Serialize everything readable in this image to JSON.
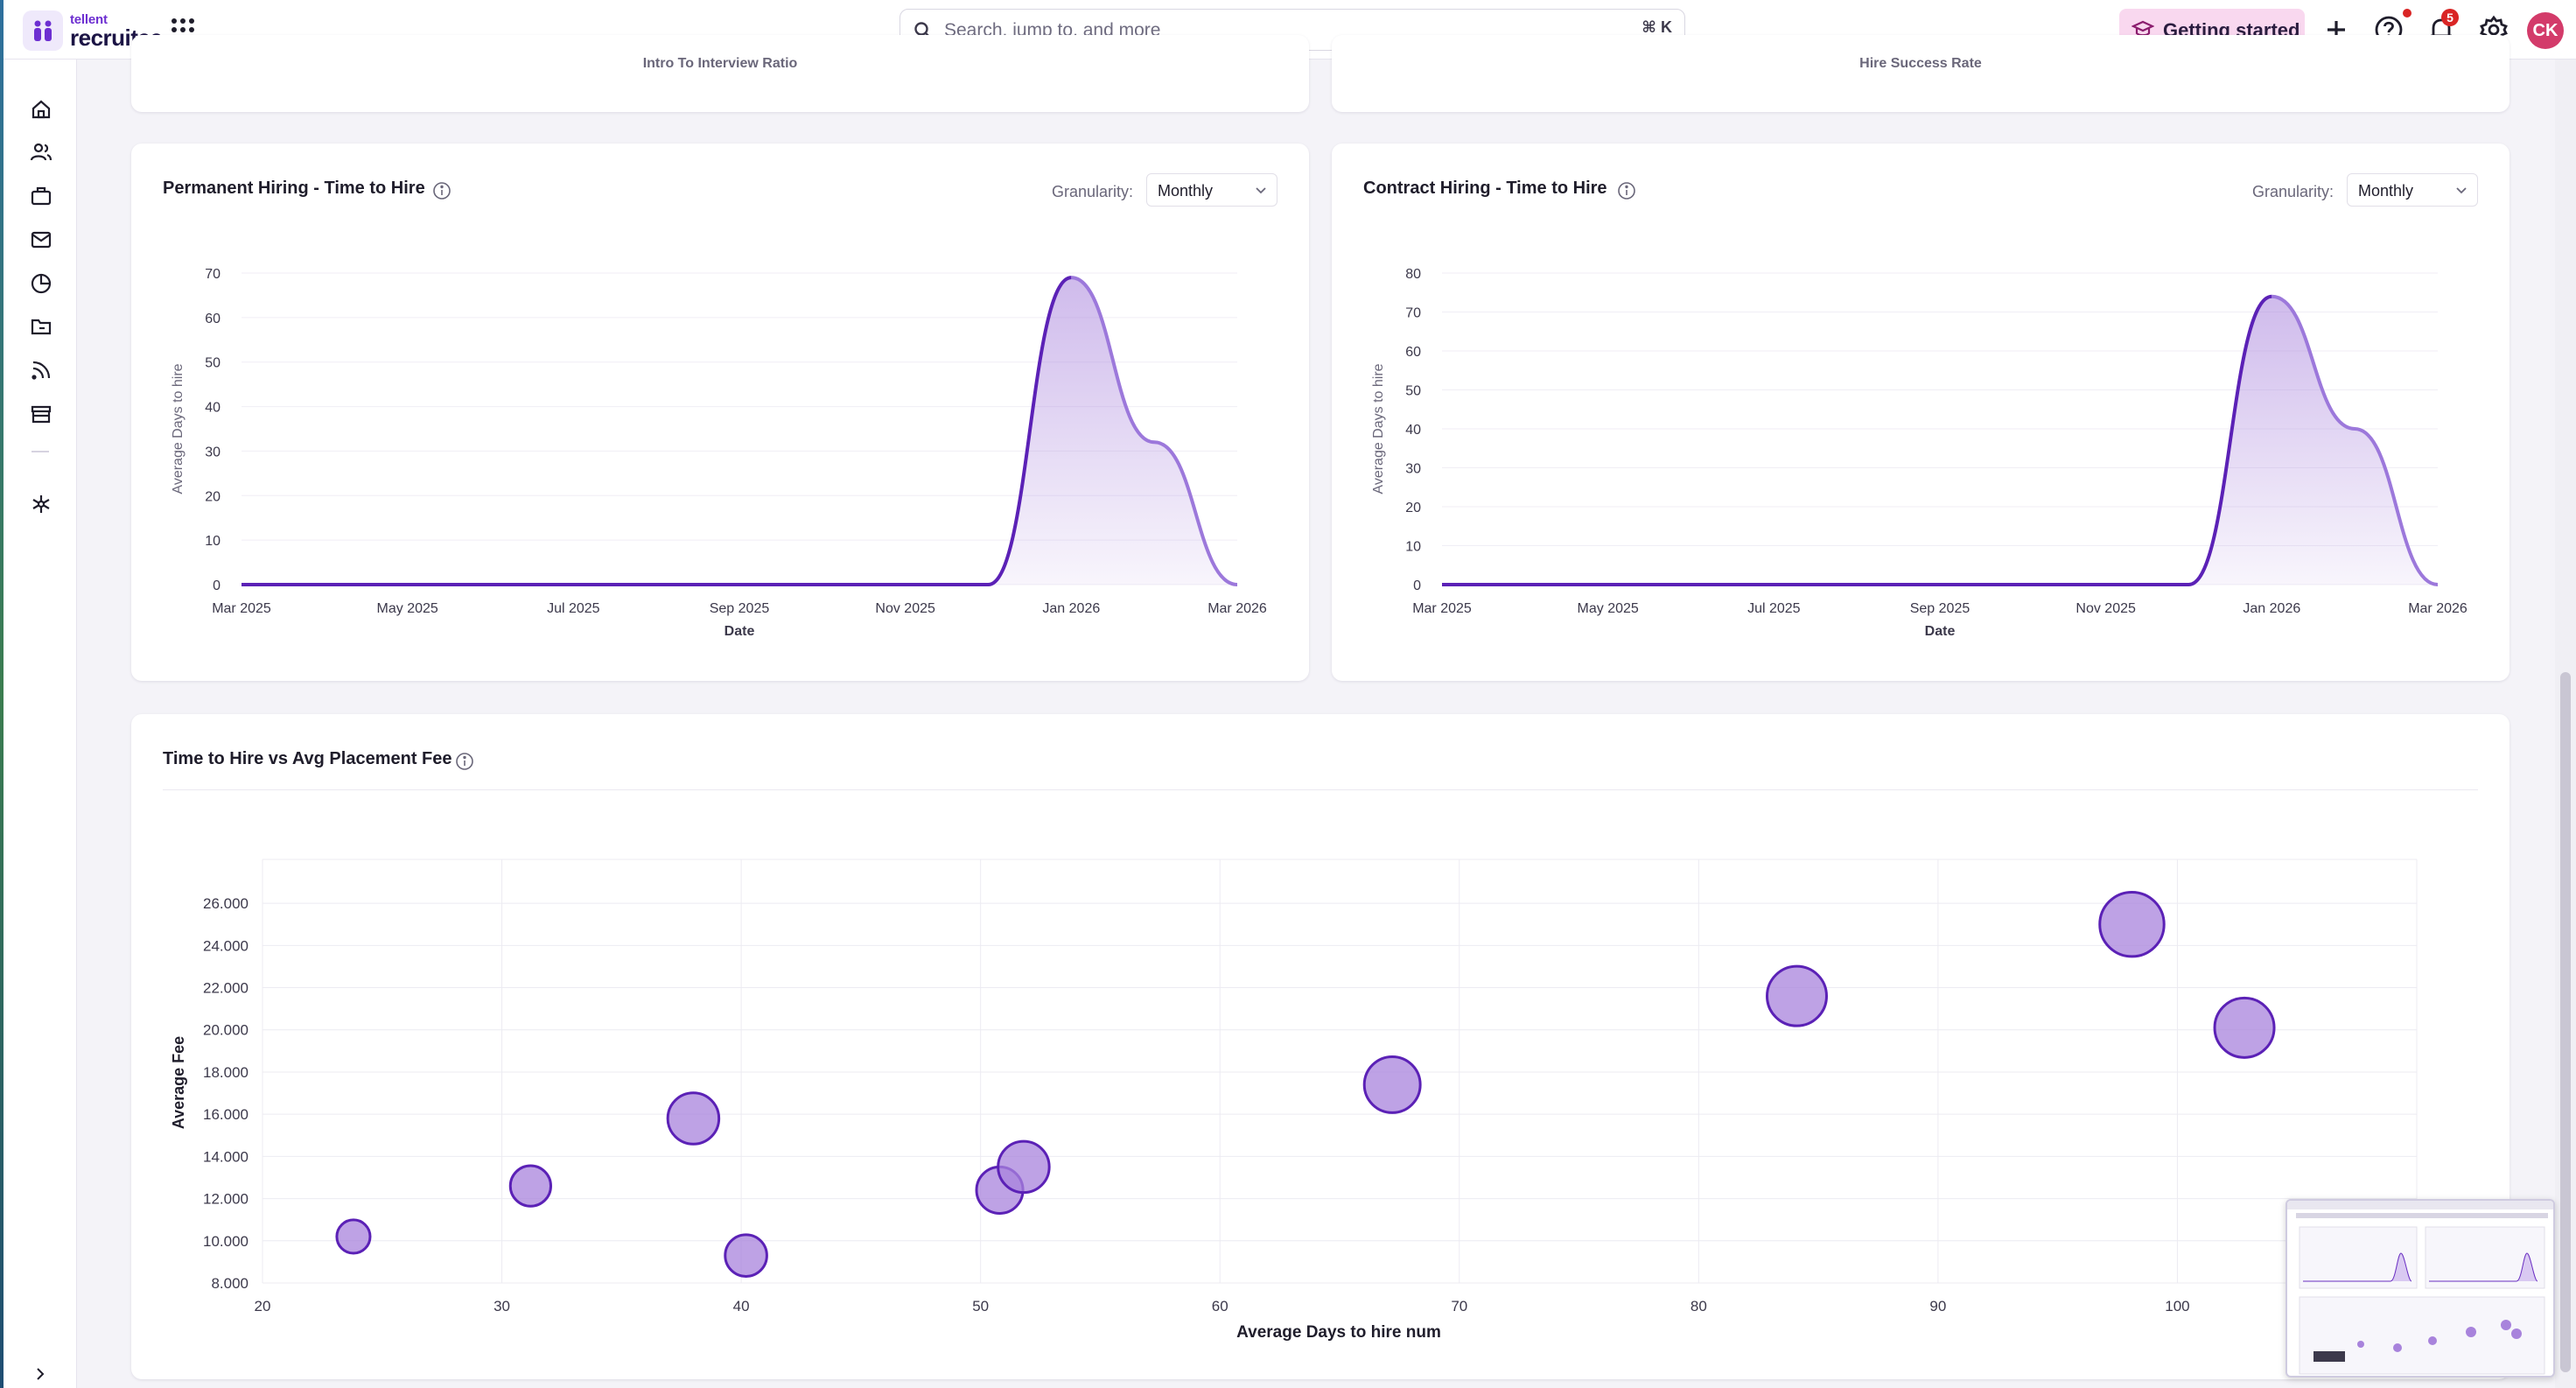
{
  "app": {
    "brand_small": "tellent",
    "brand_main": "recruitee"
  },
  "search": {
    "placeholder": "Search, jump to, and more",
    "shortcut": "⌘ K"
  },
  "header": {
    "getting_started_label": "Getting started",
    "notification_count": "5",
    "avatar_initials": "CK"
  },
  "top_cards": {
    "left_caption": "Intro To Interview Ratio",
    "right_caption": "Hire Success Rate"
  },
  "permanent_chart": {
    "title": "Permanent Hiring - Time to Hire",
    "granularity_label": "Granularity:",
    "granularity_value": "Monthly"
  },
  "contract_chart": {
    "title": "Contract Hiring - Time to Hire",
    "granularity_label": "Granularity:",
    "granularity_value": "Monthly"
  },
  "bubble_chart": {
    "title": "Time to Hire vs Avg Placement Fee"
  },
  "colors": {
    "accent": "#6a2fc2",
    "area_fill": "#c9b4ec",
    "bubble_fill": "#a883dc",
    "bubble_stroke": "#5b21b6"
  },
  "chart_data": [
    {
      "type": "area",
      "title": "Permanent Hiring - Time to Hire",
      "xlabel": "Date",
      "ylabel": "Average Days to hire",
      "x_ticks": [
        "Mar 2025",
        "May 2025",
        "Jul 2025",
        "Sep 2025",
        "Nov 2025",
        "Jan 2026",
        "Mar 2026"
      ],
      "y_ticks": [
        "0",
        "10",
        "20",
        "30",
        "40",
        "50",
        "60",
        "70"
      ],
      "ylim": [
        0,
        70
      ],
      "x": [
        "Mar 2025",
        "Apr 2025",
        "May 2025",
        "Jun 2025",
        "Jul 2025",
        "Aug 2025",
        "Sep 2025",
        "Oct 2025",
        "Nov 2025",
        "Dec 2025",
        "Jan 2026",
        "Feb 2026",
        "Mar 2026"
      ],
      "values": [
        0,
        0,
        0,
        0,
        0,
        0,
        0,
        0,
        0,
        0,
        69,
        32,
        0
      ]
    },
    {
      "type": "area",
      "title": "Contract Hiring - Time to Hire",
      "xlabel": "Date",
      "ylabel": "Average Days to hire",
      "x_ticks": [
        "Mar 2025",
        "May 2025",
        "Jul 2025",
        "Sep 2025",
        "Nov 2025",
        "Jan 2026",
        "Mar 2026"
      ],
      "y_ticks": [
        "0",
        "10",
        "20",
        "30",
        "40",
        "50",
        "60",
        "70",
        "80"
      ],
      "ylim": [
        0,
        80
      ],
      "x": [
        "Mar 2025",
        "Apr 2025",
        "May 2025",
        "Jun 2025",
        "Jul 2025",
        "Aug 2025",
        "Sep 2025",
        "Oct 2025",
        "Nov 2025",
        "Dec 2025",
        "Jan 2026",
        "Feb 2026",
        "Mar 2026"
      ],
      "values": [
        0,
        0,
        0,
        0,
        0,
        0,
        0,
        0,
        0,
        0,
        74,
        40,
        0
      ]
    },
    {
      "type": "scatter",
      "title": "Time to Hire vs Avg Placement Fee",
      "xlabel": "Average Days to hire num",
      "ylabel": "Average Fee",
      "xlim": [
        20,
        110
      ],
      "ylim": [
        8000,
        27000
      ],
      "x_ticks": [
        "20",
        "30",
        "40",
        "50",
        "60",
        "70",
        "80",
        "90",
        "100"
      ],
      "y_ticks": [
        "8.000",
        "10.000",
        "12.000",
        "14.000",
        "16.000",
        "18.000",
        "20.000",
        "22.000",
        "24.000",
        "26.000"
      ],
      "points": [
        {
          "x": 23.8,
          "y": 10200,
          "size": 0.28
        },
        {
          "x": 31.2,
          "y": 12600,
          "size": 0.34
        },
        {
          "x": 38.0,
          "y": 15800,
          "size": 0.43
        },
        {
          "x": 40.2,
          "y": 9300,
          "size": 0.35
        },
        {
          "x": 50.8,
          "y": 12400,
          "size": 0.39
        },
        {
          "x": 51.8,
          "y": 13500,
          "size": 0.43
        },
        {
          "x": 67.2,
          "y": 17400,
          "size": 0.47
        },
        {
          "x": 84.1,
          "y": 21600,
          "size": 0.5
        },
        {
          "x": 98.1,
          "y": 25000,
          "size": 0.54
        },
        {
          "x": 102.8,
          "y": 20100,
          "size": 0.5
        }
      ]
    }
  ]
}
